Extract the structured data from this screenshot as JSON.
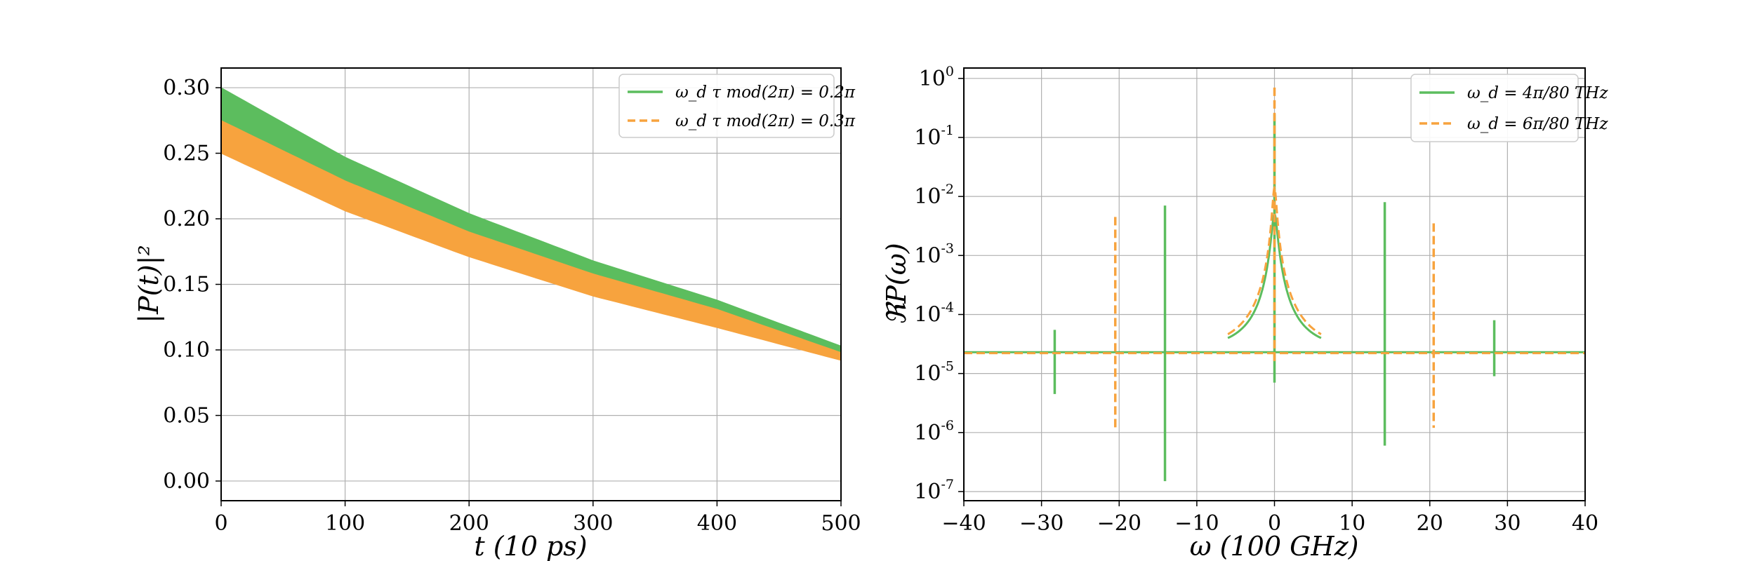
{
  "chart_data": [
    {
      "type": "area",
      "xlabel": "t (10 ps)",
      "ylabel": "|P(t)|²",
      "xlim": [
        0,
        500
      ],
      "ylim": [
        -0.015,
        0.315
      ],
      "x_ticks": [
        0,
        100,
        200,
        300,
        400,
        500
      ],
      "y_ticks": [
        0.0,
        0.05,
        0.1,
        0.15,
        0.2,
        0.25,
        0.3
      ],
      "x_tick_labels": [
        "0",
        "100",
        "200",
        "300",
        "400",
        "500"
      ],
      "y_tick_labels": [
        "0.00",
        "0.05",
        "0.10",
        "0.15",
        "0.20",
        "0.25",
        "0.30"
      ],
      "grid": true,
      "legend_position": "top-right",
      "series": [
        {
          "name": "ω_d τ mod(2π) = 0.2π",
          "color": "#5cbd5e",
          "style": "solid",
          "x": [
            0,
            100,
            200,
            300,
            400,
            500
          ],
          "upper": [
            0.3,
            0.247,
            0.204,
            0.168,
            0.138,
            0.103
          ],
          "lower": [
            0.25,
            0.211,
            0.178,
            0.15,
            0.126,
            0.097
          ]
        },
        {
          "name": "ω_d τ mod(2π) = 0.3π",
          "color": "#f7a33e",
          "style": "dashed",
          "x": [
            0,
            100,
            200,
            300,
            400,
            500
          ],
          "upper": [
            0.275,
            0.229,
            0.19,
            0.158,
            0.131,
            0.098
          ],
          "lower": [
            0.25,
            0.206,
            0.171,
            0.141,
            0.117,
            0.092
          ]
        }
      ]
    },
    {
      "type": "line",
      "xlabel": "ω (100 GHz)",
      "ylabel": "ℜP(ω)",
      "xlim": [
        -40,
        40
      ],
      "ylog": true,
      "ylim": [
        7e-08,
        1.5
      ],
      "x_ticks": [
        -40,
        -30,
        -20,
        -10,
        0,
        10,
        20,
        30,
        40
      ],
      "x_tick_labels": [
        "−40",
        "−30",
        "−20",
        "−10",
        "0",
        "10",
        "20",
        "30",
        "40"
      ],
      "y_ticks": [
        1e-07,
        1e-06,
        1e-05,
        0.0001,
        0.001,
        0.01,
        0.1,
        1
      ],
      "y_tick_labels": [
        {
          "base": "10",
          "exp": "-7"
        },
        {
          "base": "10",
          "exp": "-6"
        },
        {
          "base": "10",
          "exp": "-5"
        },
        {
          "base": "10",
          "exp": "-4"
        },
        {
          "base": "10",
          "exp": "-3"
        },
        {
          "base": "10",
          "exp": "-2"
        },
        {
          "base": "10",
          "exp": "-1"
        },
        {
          "base": "10",
          "exp": "0"
        }
      ],
      "grid": true,
      "legend_position": "top-right",
      "baseline": 2.3e-05,
      "series": [
        {
          "name": "ω_d = 4π/80 THz",
          "color": "#5cbd5e",
          "style": "solid",
          "spikes": [
            {
              "x": -28.3,
              "y_low": 4.5e-06,
              "y_high": 5.5e-05
            },
            {
              "x": -14.1,
              "y_low": 1.5e-07,
              "y_high": 0.007
            },
            {
              "x": 0,
              "y_low": 7e-06,
              "y_high": 0.25
            },
            {
              "x": 14.2,
              "y_low": 6e-07,
              "y_high": 0.008
            },
            {
              "x": 28.3,
              "y_low": 9e-06,
              "y_high": 8e-05
            }
          ]
        },
        {
          "name": "ω_d = 6π/80 THz",
          "color": "#f7a33e",
          "style": "dashed",
          "spikes": [
            {
              "x": -20.5,
              "y_low": 1.2e-06,
              "y_high": 0.0045
            },
            {
              "x": 0,
              "y_low": 1.5e-05,
              "y_high": 0.7
            },
            {
              "x": 20.5,
              "y_low": 1.2e-06,
              "y_high": 0.0035
            }
          ]
        }
      ]
    }
  ]
}
